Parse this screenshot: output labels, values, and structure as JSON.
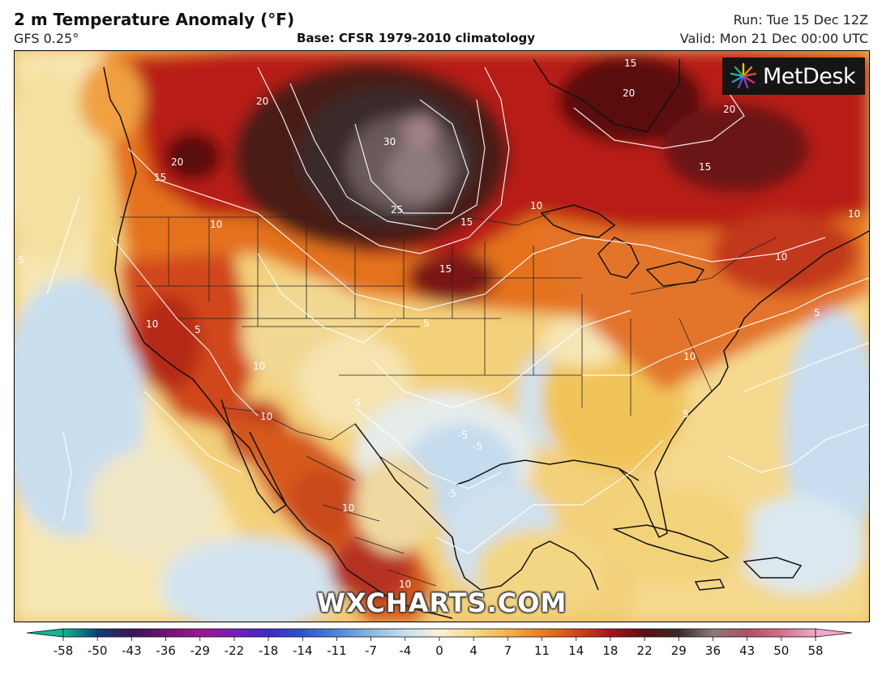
{
  "header": {
    "title": "2 m Temperature Anomaly (°F)",
    "model": "GFS 0.25°",
    "base": "Base: CFSR 1979-2010 climatology",
    "run": "Run: Tue 15 Dec 12Z",
    "valid": "Valid: Mon 21 Dec 00:00 UTC"
  },
  "logo": {
    "name": "MetDesk",
    "icon": "metdesk-starburst-icon"
  },
  "watermark": "WXCHARTS.COM",
  "colorbar": {
    "ticks": [
      "-58",
      "-50",
      "-43",
      "-36",
      "-29",
      "-22",
      "-18",
      "-14",
      "-11",
      "-7",
      "-4",
      "0",
      "4",
      "7",
      "11",
      "14",
      "18",
      "22",
      "29",
      "36",
      "43",
      "50",
      "58"
    ],
    "colors": [
      "#11b595",
      "#0e3f72",
      "#3a1456",
      "#6d1570",
      "#9a1890",
      "#7a1db8",
      "#3c2bc8",
      "#2e55d0",
      "#4f86d8",
      "#88b8e2",
      "#c6dff0",
      "#f8f1d8",
      "#f6d98a",
      "#f2b34c",
      "#ea7d22",
      "#d4471a",
      "#a8141c",
      "#5a1010",
      "#3a2a2a",
      "#8a7a7a",
      "#b05060",
      "#d0708a",
      "#f0a8c8"
    ]
  },
  "map": {
    "contour_labels": [
      {
        "text": "20",
        "region": "northern-plains"
      },
      {
        "text": "25",
        "region": "northern-plains"
      },
      {
        "text": "30",
        "region": "manitoba"
      },
      {
        "text": "15",
        "region": "upper-midwest"
      },
      {
        "text": "15",
        "region": "iowa"
      },
      {
        "text": "10",
        "region": "great-lakes"
      },
      {
        "text": "10",
        "region": "mid-atlantic"
      },
      {
        "text": "10",
        "region": "carolinas"
      },
      {
        "text": "15",
        "region": "hudson-bay"
      },
      {
        "text": "20",
        "region": "hudson-bay"
      },
      {
        "text": "20",
        "region": "quebec"
      },
      {
        "text": "15",
        "region": "quebec"
      },
      {
        "text": "10",
        "region": "new-england"
      },
      {
        "text": "20",
        "region": "british-columbia"
      },
      {
        "text": "15",
        "region": "british-columbia"
      },
      {
        "text": "10",
        "region": "alberta"
      },
      {
        "text": "10",
        "region": "california"
      },
      {
        "text": "10",
        "region": "arizona"
      },
      {
        "text": "10",
        "region": "baja"
      },
      {
        "text": "10",
        "region": "western-mexico"
      },
      {
        "text": "10",
        "region": "southern-mexico"
      },
      {
        "text": "5",
        "region": "oregon"
      },
      {
        "text": "5",
        "region": "great-basin"
      },
      {
        "text": "5",
        "region": "southeast"
      },
      {
        "text": "5",
        "region": "atlantic"
      },
      {
        "text": "5",
        "region": "gulf"
      },
      {
        "text": "-5",
        "region": "texas"
      },
      {
        "text": "-5",
        "region": "gulf-coast"
      },
      {
        "text": "-5",
        "region": "gulf-of-mexico"
      },
      {
        "text": "-5",
        "region": "pacific"
      }
    ]
  }
}
